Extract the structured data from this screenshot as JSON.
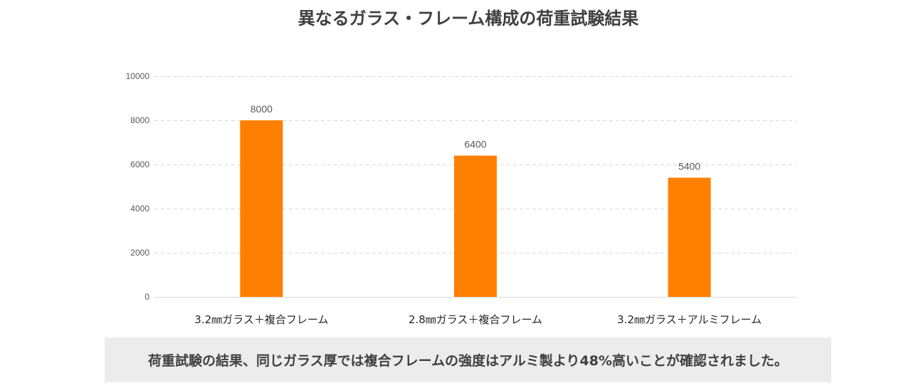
{
  "chart_data": {
    "type": "bar",
    "title": "異なるガラス・フレーム構成の荷重試験結果",
    "categories": [
      "3.2㎜ガラス＋複合フレーム",
      "2.8㎜ガラス＋複合フレーム",
      "3.2㎜ガラス＋アルミフレーム"
    ],
    "values": [
      8000,
      6400,
      5400
    ],
    "data_labels": [
      "8000",
      "6400",
      "5400"
    ],
    "ylim": [
      0,
      10000
    ],
    "yticks": [
      "0",
      "2000",
      "4000",
      "6000",
      "8000",
      "10000"
    ],
    "xlabel": "",
    "ylabel": "",
    "grid": true,
    "bar_color": "#ff7f00"
  },
  "note": "荷重試験の結果、同じガラス厚では複合フレームの強度はアルミ製より48%高いことが確認されました。"
}
